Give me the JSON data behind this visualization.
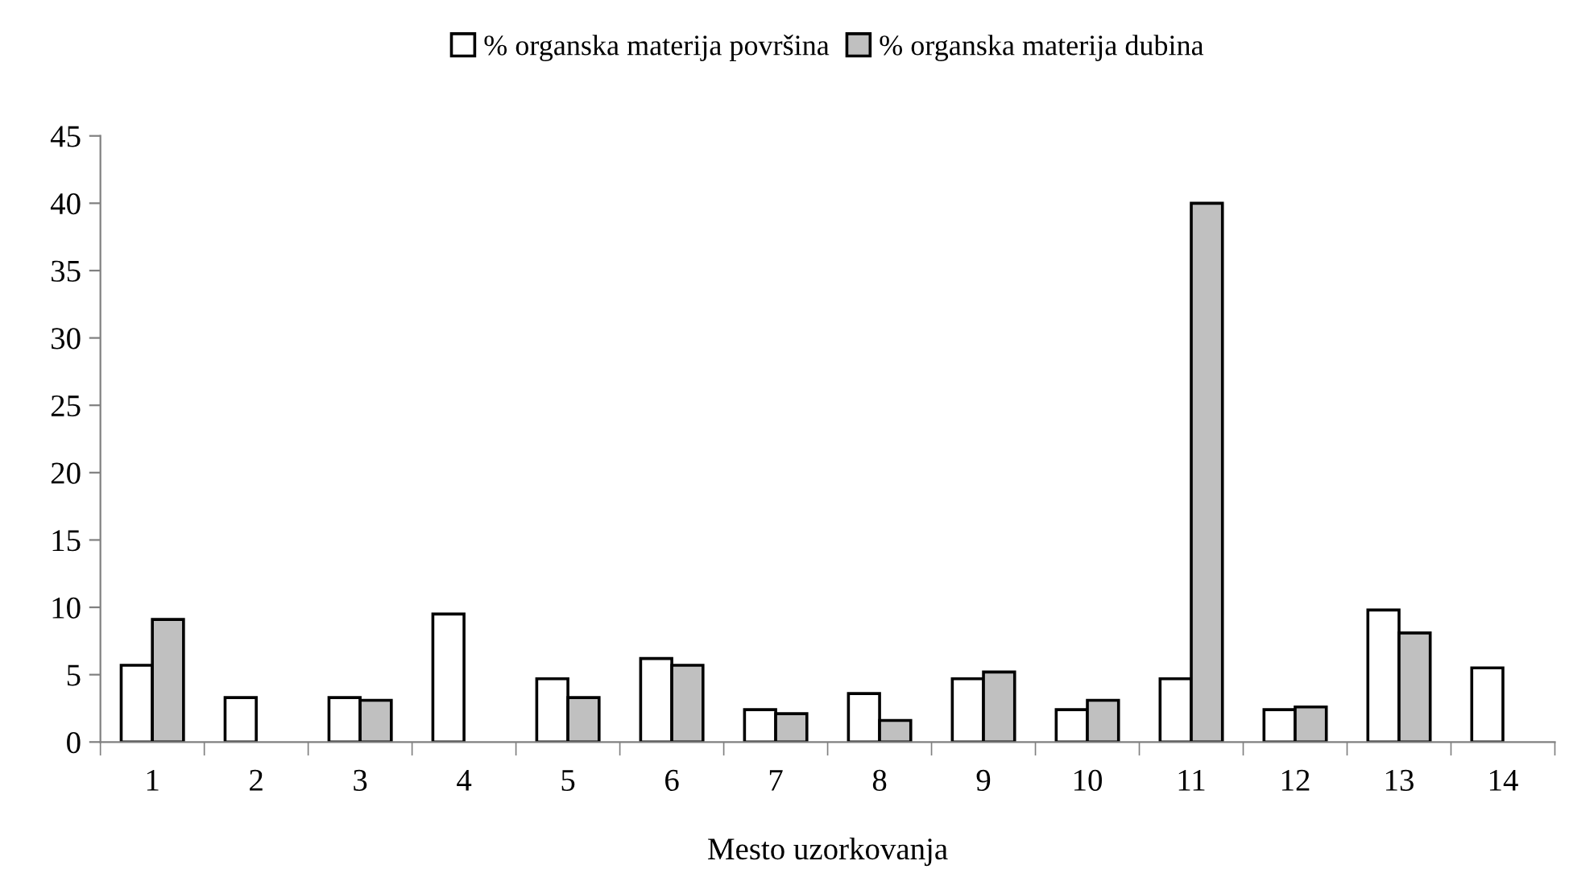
{
  "chart_data": {
    "type": "bar",
    "categories": [
      "1",
      "2",
      "3",
      "4",
      "5",
      "6",
      "7",
      "8",
      "9",
      "10",
      "11",
      "12",
      "13",
      "14"
    ],
    "series": [
      {
        "name": "% organska materija površina",
        "color": "#ffffff",
        "values": [
          5.7,
          3.3,
          3.3,
          9.5,
          4.7,
          6.2,
          2.4,
          3.6,
          4.7,
          2.4,
          4.7,
          2.4,
          9.8,
          5.5
        ]
      },
      {
        "name": "% organska materija dubina",
        "color": "#c0c0c0",
        "values": [
          9.1,
          null,
          3.1,
          null,
          3.3,
          5.7,
          2.1,
          1.6,
          5.2,
          3.1,
          40.0,
          2.6,
          8.1,
          null
        ]
      }
    ],
    "xlabel": "Mesto uzorkovanja",
    "ylim": [
      0,
      45
    ],
    "yticks": [
      0,
      5,
      10,
      15,
      20,
      25,
      30,
      35,
      40,
      45
    ],
    "legend": "top",
    "grid": false
  }
}
